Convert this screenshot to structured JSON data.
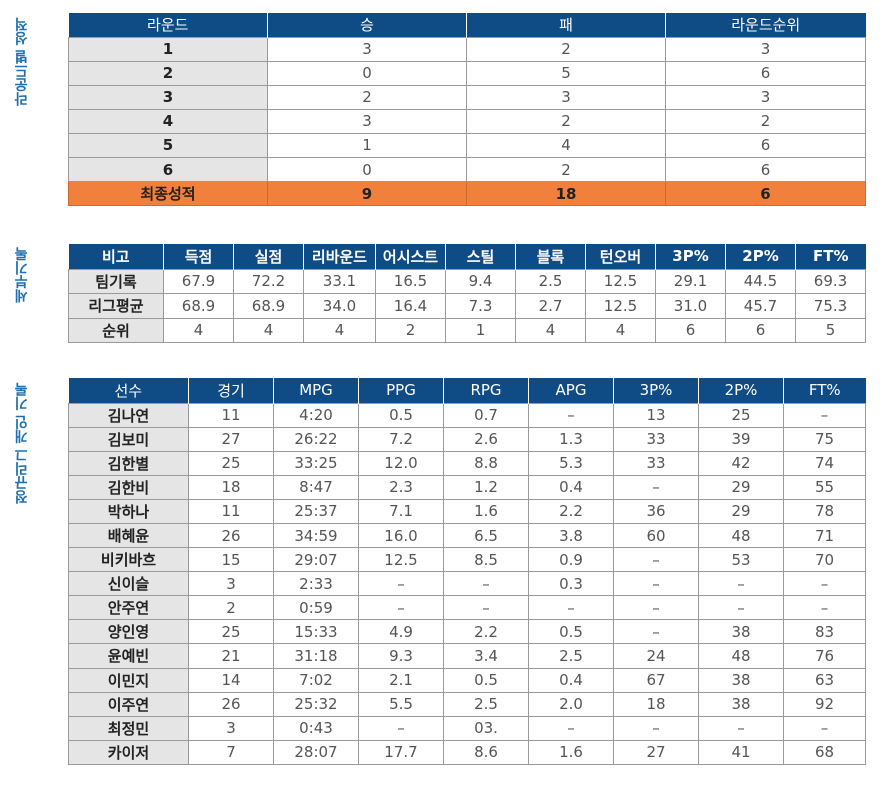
{
  "round_section": {
    "side_label": "라운드별 성적",
    "headers": [
      "라운드",
      "승",
      "패",
      "라운드순위"
    ],
    "rows": [
      [
        "1",
        "3",
        "2",
        "3"
      ],
      [
        "2",
        "0",
        "5",
        "6"
      ],
      [
        "3",
        "2",
        "3",
        "3"
      ],
      [
        "4",
        "3",
        "2",
        "2"
      ],
      [
        "5",
        "1",
        "4",
        "6"
      ],
      [
        "6",
        "0",
        "2",
        "6"
      ]
    ],
    "final_row": [
      "최종성적",
      "9",
      "18",
      "6"
    ],
    "colors": {
      "header": "#0f4c86",
      "final": "#f2803d"
    }
  },
  "detail_section": {
    "side_label": "세부기록",
    "headers": [
      "비고",
      "득점",
      "실점",
      "리바운드",
      "어시스트",
      "스틸",
      "블록",
      "턴오버",
      "3P%",
      "2P%",
      "FT%"
    ],
    "rows": [
      [
        "팀기록",
        "67.9",
        "72.2",
        "33.1",
        "16.5",
        "9.4",
        "2.5",
        "12.5",
        "29.1",
        "44.5",
        "69.3"
      ],
      [
        "리그평균",
        "68.9",
        "68.9",
        "34.0",
        "16.4",
        "7.3",
        "2.7",
        "12.5",
        "31.0",
        "45.7",
        "75.3"
      ],
      [
        "순위",
        "4",
        "4",
        "4",
        "2",
        "1",
        "4",
        "4",
        "6",
        "6",
        "5"
      ]
    ]
  },
  "player_section": {
    "side_label": "정규리그 개인 기록",
    "headers": [
      "선수",
      "경기",
      "MPG",
      "PPG",
      "RPG",
      "APG",
      "3P%",
      "2P%",
      "FT%"
    ],
    "rows": [
      [
        "김나연",
        "11",
        "4:20",
        "0.5",
        "0.7",
        "–",
        "13",
        "25",
        "–"
      ],
      [
        "김보미",
        "27",
        "26:22",
        "7.2",
        "2.6",
        "1.3",
        "33",
        "39",
        "75"
      ],
      [
        "김한별",
        "25",
        "33:25",
        "12.0",
        "8.8",
        "5.3",
        "33",
        "42",
        "74"
      ],
      [
        "김한비",
        "18",
        "8:47",
        "2.3",
        "1.2",
        "0.4",
        "–",
        "29",
        "55"
      ],
      [
        "박하나",
        "11",
        "25:37",
        "7.1",
        "1.6",
        "2.2",
        "36",
        "29",
        "78"
      ],
      [
        "배혜윤",
        "26",
        "34:59",
        "16.0",
        "6.5",
        "3.8",
        "60",
        "48",
        "71"
      ],
      [
        "비키바흐",
        "15",
        "29:07",
        "12.5",
        "8.5",
        "0.9",
        "–",
        "53",
        "70"
      ],
      [
        "신이슬",
        "3",
        "2:33",
        "–",
        "–",
        "0.3",
        "–",
        "–",
        "–"
      ],
      [
        "안주연",
        "2",
        "0:59",
        "–",
        "–",
        "–",
        "–",
        "–",
        "–"
      ],
      [
        "양인영",
        "25",
        "15:33",
        "4.9",
        "2.2",
        "0.5",
        "–",
        "38",
        "83"
      ],
      [
        "윤예빈",
        "21",
        "31:18",
        "9.3",
        "3.4",
        "2.5",
        "24",
        "48",
        "76"
      ],
      [
        "이민지",
        "14",
        "7:02",
        "2.1",
        "0.5",
        "0.4",
        "67",
        "38",
        "63"
      ],
      [
        "이주연",
        "26",
        "25:32",
        "5.5",
        "2.5",
        "2.0",
        "18",
        "38",
        "92"
      ],
      [
        "최정민",
        "3",
        "0:43",
        "–",
        "03.",
        "–",
        "–",
        "–",
        "–"
      ],
      [
        "카이저",
        "7",
        "28:07",
        "17.7",
        "8.6",
        "1.6",
        "27",
        "41",
        "68"
      ]
    ]
  }
}
